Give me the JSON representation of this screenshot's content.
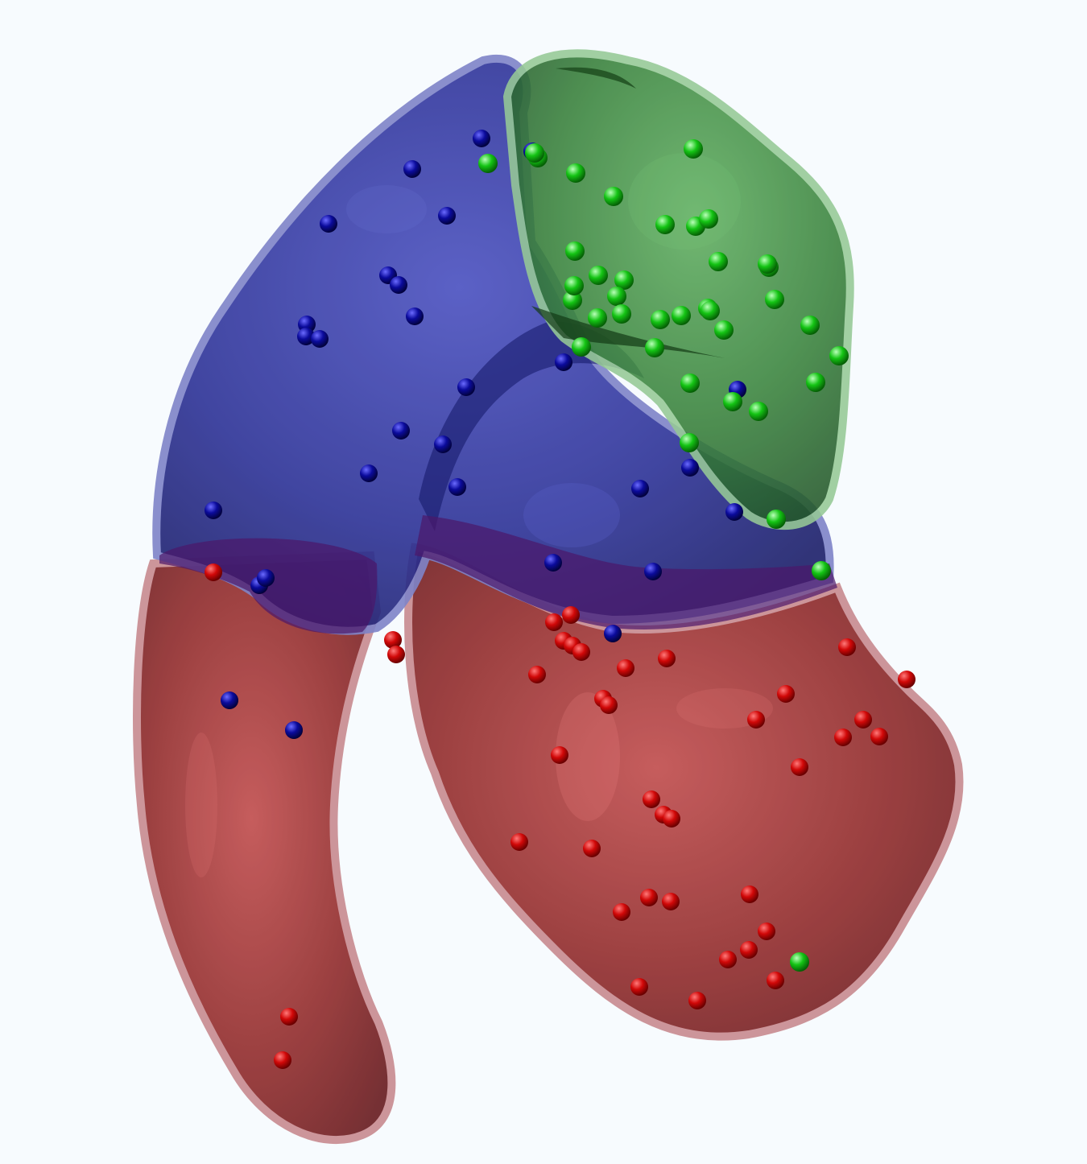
{
  "background_color": "#f7fbfe",
  "regions": [
    {
      "id": "blue-region",
      "color": "#2b2f9c",
      "points_color": "#0a0a8c"
    },
    {
      "id": "green-region",
      "color": "#2f8a36",
      "points_color": "#12c412"
    },
    {
      "id": "red-region",
      "color": "#8e2424",
      "points_color": "#c80808"
    }
  ],
  "points_count": {
    "blue": 33,
    "green": 38,
    "red": 57
  }
}
